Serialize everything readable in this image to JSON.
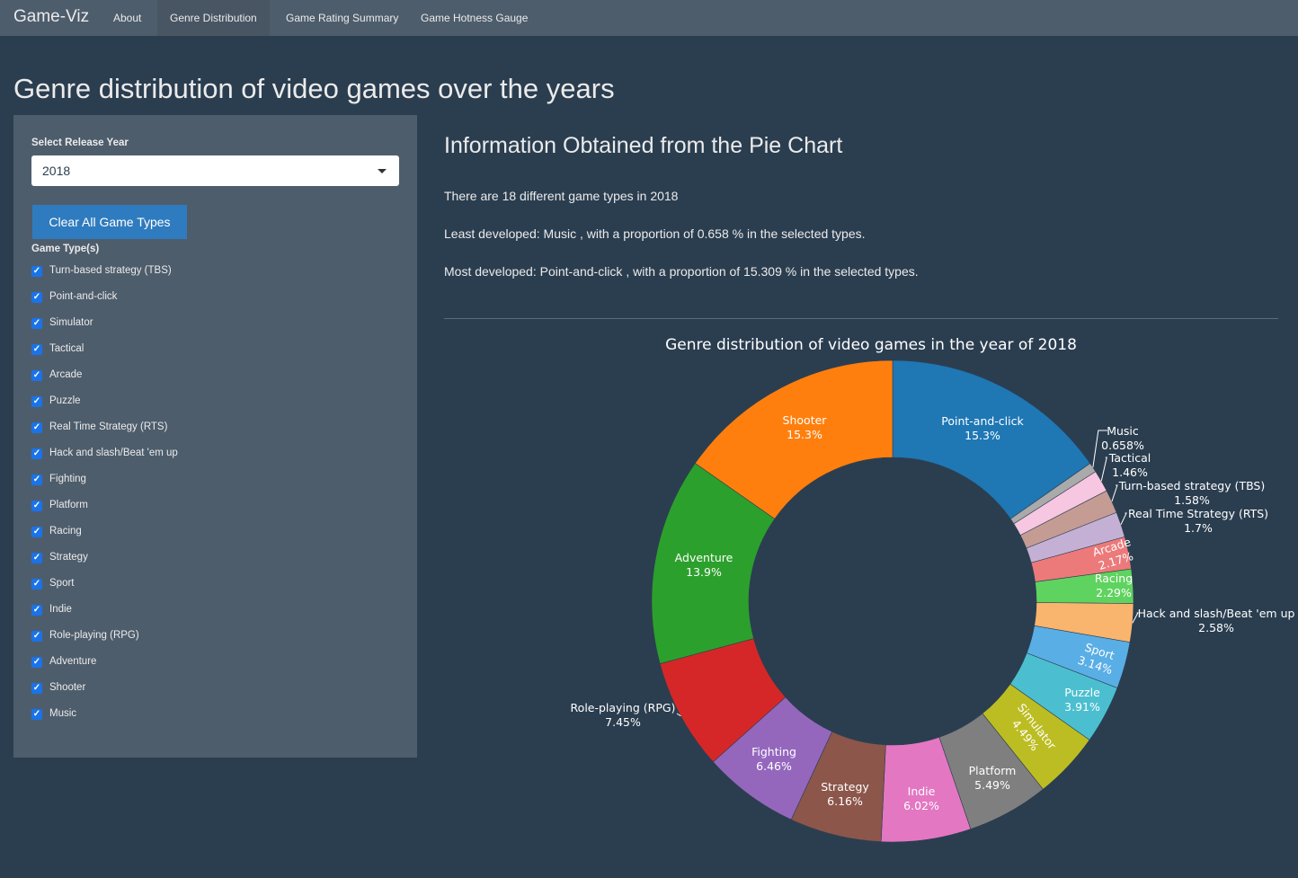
{
  "navbar": {
    "brand": "Game-Viz",
    "items": [
      {
        "label": "About",
        "active": false
      },
      {
        "label": "Genre Distribution",
        "active": true
      },
      {
        "label": "Game Rating Summary",
        "active": false
      },
      {
        "label": "Game Hotness Gauge",
        "active": false
      }
    ]
  },
  "page": {
    "title": "Genre distribution of video games over the years"
  },
  "sidebar": {
    "year_label": "Select Release Year",
    "year_value": "2018",
    "clear_button": "Clear All Game Types",
    "types_label": "Game Type(s)",
    "game_types": [
      "Turn-based strategy (TBS)",
      "Point-and-click",
      "Simulator",
      "Tactical",
      "Arcade",
      "Puzzle",
      "Real Time Strategy (RTS)",
      "Hack and slash/Beat 'em up",
      "Fighting",
      "Platform",
      "Racing",
      "Strategy",
      "Sport",
      "Indie",
      "Role-playing (RPG)",
      "Adventure",
      "Shooter",
      "Music"
    ]
  },
  "info": {
    "title": "Information Obtained from the Pie Chart",
    "line1": "There are 18 different game types in 2018",
    "line2": "Least developed: Music , with a proportion of 0.658 % in the selected types.",
    "line3": "Most developed: Point-and-click , with a proportion of 15.309 % in the selected types."
  },
  "chart_data": {
    "type": "pie",
    "hole": true,
    "title": "Genre distribution of video games in the year of 2018",
    "slices": [
      {
        "label": "Point-and-click",
        "value": 15.309,
        "text": "15.3%",
        "color": "#1f77b4"
      },
      {
        "label": "Music",
        "value": 0.658,
        "text": "0.658%",
        "color": "#aaaaaa"
      },
      {
        "label": "Tactical",
        "value": 1.46,
        "text": "1.46%",
        "color": "#f7c6e0"
      },
      {
        "label": "Turn-based strategy (TBS)",
        "value": 1.58,
        "text": "1.58%",
        "color": "#c49c94"
      },
      {
        "label": "Real Time Strategy (RTS)",
        "value": 1.7,
        "text": "1.7%",
        "color": "#c5b0d5"
      },
      {
        "label": "Arcade",
        "value": 2.17,
        "text": "2.17%",
        "color": "#ec7a7b"
      },
      {
        "label": "Racing",
        "value": 2.29,
        "text": "2.29%",
        "color": "#5fd35f"
      },
      {
        "label": "Hack and slash/Beat 'em up",
        "value": 2.58,
        "text": "2.58%",
        "color": "#f9b46e"
      },
      {
        "label": "Sport",
        "value": 3.14,
        "text": "3.14%",
        "color": "#5aaee6"
      },
      {
        "label": "Puzzle",
        "value": 3.91,
        "text": "3.91%",
        "color": "#4bbfcf"
      },
      {
        "label": "Simulator",
        "value": 4.49,
        "text": "4.49%",
        "color": "#bcbd22"
      },
      {
        "label": "Platform",
        "value": 5.49,
        "text": "5.49%",
        "color": "#7f7f7f"
      },
      {
        "label": "Indie",
        "value": 6.02,
        "text": "6.02%",
        "color": "#e377c2"
      },
      {
        "label": "Strategy",
        "value": 6.16,
        "text": "6.16%",
        "color": "#8c564b"
      },
      {
        "label": "Fighting",
        "value": 6.46,
        "text": "6.46%",
        "color": "#9467bd"
      },
      {
        "label": "Role-playing (RPG)",
        "value": 7.45,
        "text": "7.45%",
        "color": "#d62728"
      },
      {
        "label": "Adventure",
        "value": 13.9,
        "text": "13.9%",
        "color": "#2ca02c"
      },
      {
        "label": "Shooter",
        "value": 15.3,
        "text": "15.3%",
        "color": "#ff7f0e"
      }
    ]
  }
}
